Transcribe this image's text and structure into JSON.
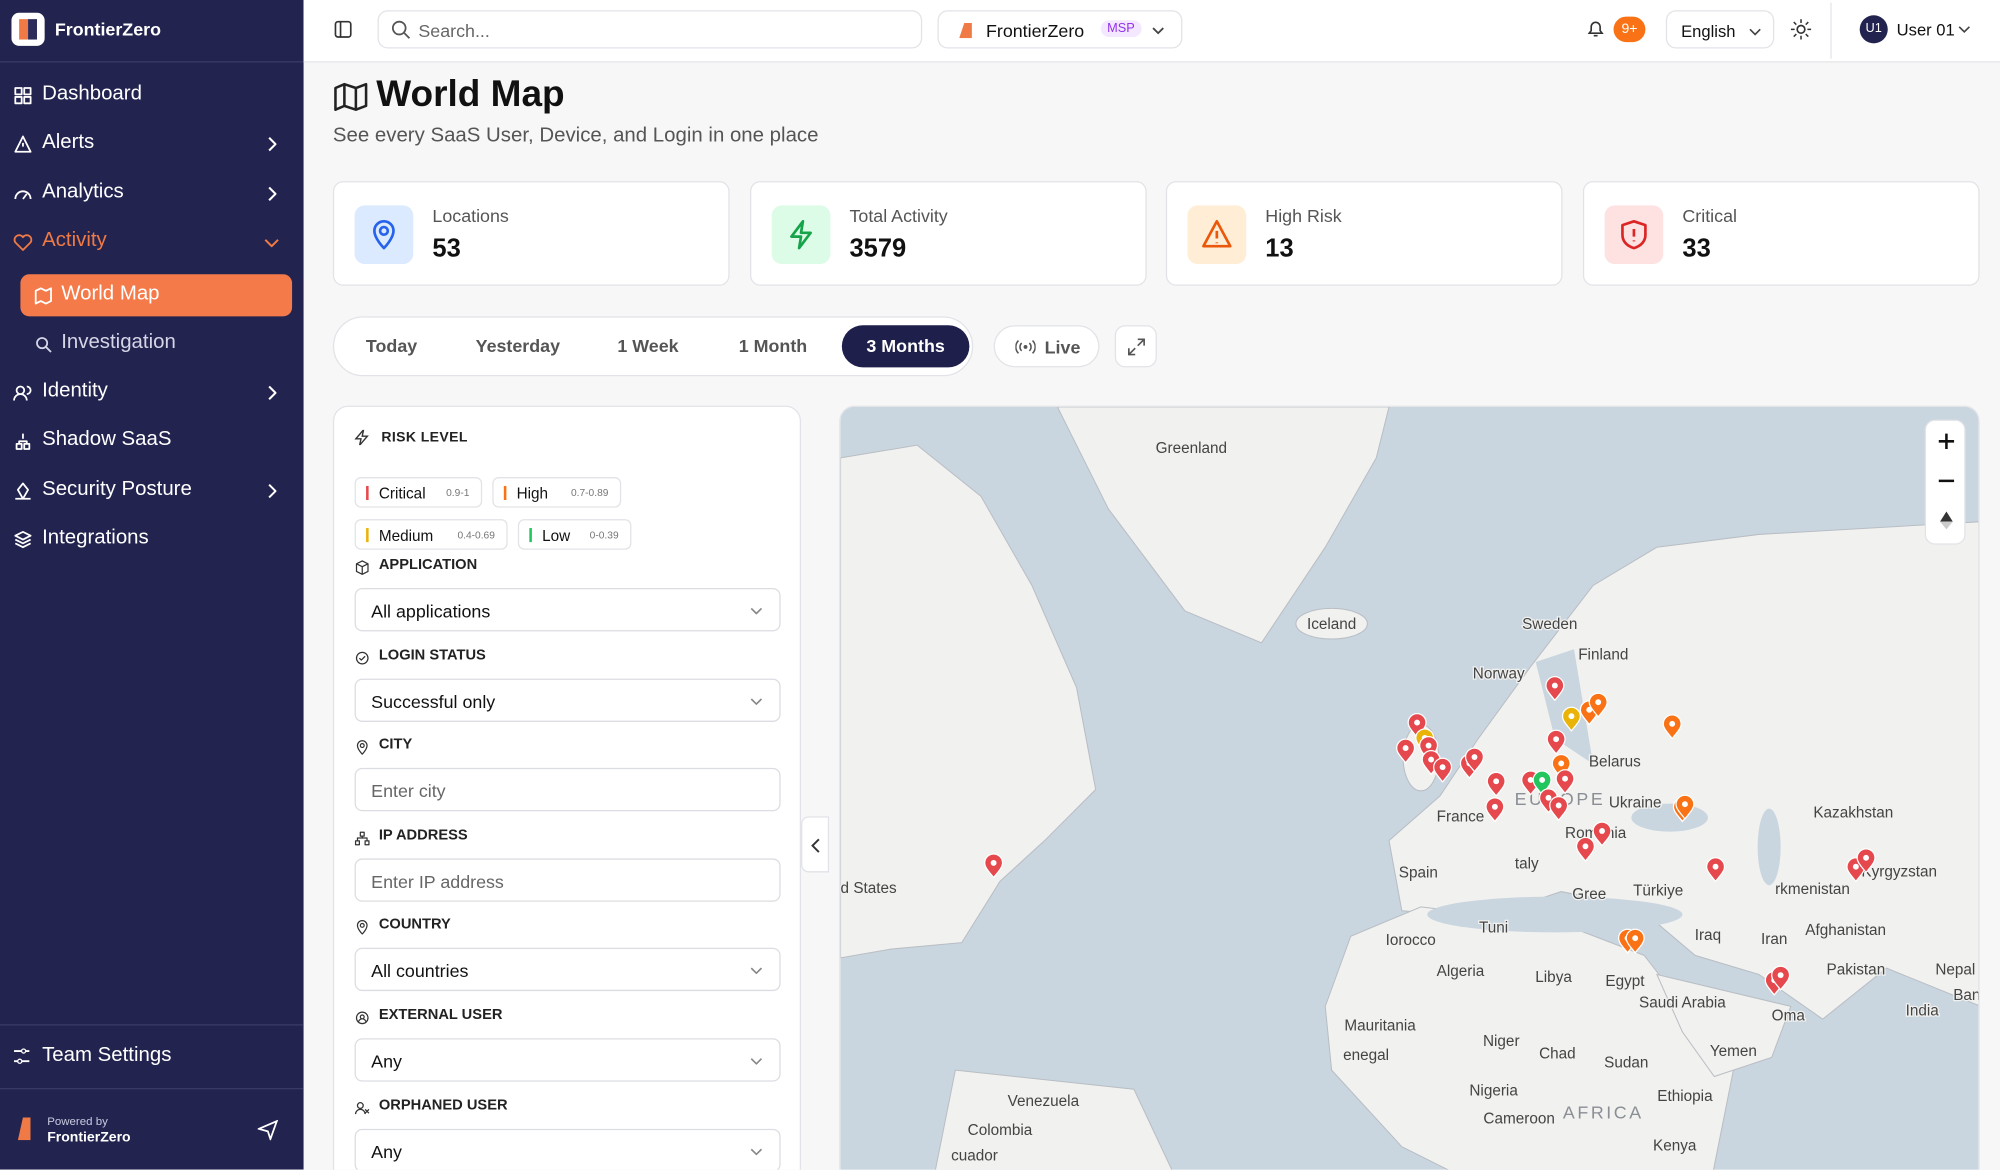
{
  "sidebar": {
    "brand": "FrontierZero",
    "nav": [
      "Dashboard",
      "Alerts",
      "Analytics",
      "Activity",
      "World Map",
      "Investigation",
      "Identity",
      "Shadow SaaS",
      "Security Posture",
      "Integrations"
    ],
    "team_settings": "Team Settings",
    "powered_by": "Powered by",
    "powered_brand": "FrontierZero"
  },
  "topbar": {
    "search_placeholder": "Search...",
    "org": "FrontierZero",
    "org_badge": "MSP",
    "notifications": "9+",
    "language": "English",
    "avatar": "U1",
    "user": "User 01"
  },
  "header": {
    "title": "World Map",
    "subtitle": "See every SaaS User, Device, and Login in one place"
  },
  "stats": [
    {
      "label": "Locations",
      "value": 53
    },
    {
      "label": "Total Activity",
      "value": 3579
    },
    {
      "label": "High Risk",
      "value": 13
    },
    {
      "label": "Critical",
      "value": 33
    }
  ],
  "time_ranges": [
    "Today",
    "Yesterday",
    "1 Week",
    "1 Month",
    "3 Months"
  ],
  "live": "Live",
  "filters": {
    "risk_level": "RISK LEVEL",
    "risk_levels": [
      {
        "name": "Critical",
        "range": "0.9-1",
        "color": "#e5484d"
      },
      {
        "name": "High",
        "range": "0.7-0.89",
        "color": "#f97316"
      },
      {
        "name": "Medium",
        "range": "0.4-0.69",
        "color": "#eab308"
      },
      {
        "name": "Low",
        "range": "0-0.39",
        "color": "#22c55e"
      }
    ],
    "fields": [
      {
        "label": "APPLICATION",
        "value": "All applications"
      },
      {
        "label": "LOGIN STATUS",
        "value": "Successful only"
      },
      {
        "label": "CITY",
        "placeholder": "Enter city"
      },
      {
        "label": "IP ADDRESS",
        "placeholder": "Enter IP address"
      },
      {
        "label": "COUNTRY",
        "value": "All countries"
      },
      {
        "label": "EXTERNAL USER",
        "value": "Any"
      },
      {
        "label": "ORPHANED USER",
        "value": "Any"
      }
    ]
  },
  "map": {
    "labels": [
      "Greenland",
      "Iceland",
      "Sweden",
      "Finland",
      "Norway",
      "Belarus",
      "Ukraine",
      "Kazakhstan",
      "France",
      "EUROPE",
      "Romania",
      "Spain",
      "taly",
      "Türkiye",
      "rkmenistan",
      "Kyrgyzstan",
      "d States",
      "Gree",
      "Tuni",
      "Iorocco",
      "Iraq",
      "Iran",
      "Afghanistan",
      "Algeria",
      "Libya",
      "Egypt",
      "Pakistan",
      "Nepal",
      "Ban",
      "India",
      "Saudi Arabia",
      "Oma",
      "Mauritania",
      "Niger",
      "Chad",
      "Sudan",
      "Yemen",
      "enegal",
      "Nigeria",
      "Ethiopia",
      "Venezuela",
      "Colombia",
      "Cameroon",
      "AFRICA",
      "Kenya",
      "cuador"
    ]
  }
}
